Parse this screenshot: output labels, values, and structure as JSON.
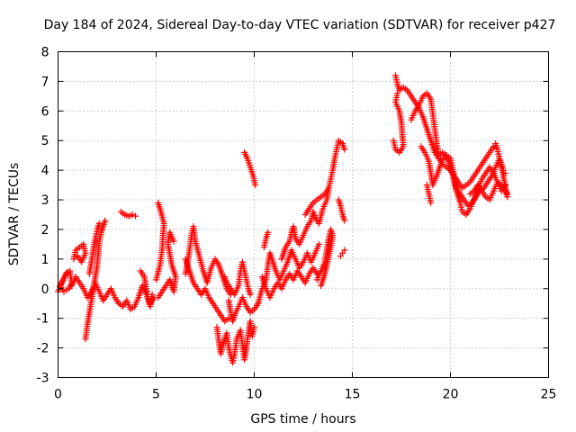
{
  "chart_data": {
    "type": "scatter",
    "title": "Day 184 of 2024, Sidereal Day-to-day VTEC variation (SDTVAR) for receiver p427",
    "xlabel": "GPS time / hours",
    "ylabel": "SDTVAR / TECUs",
    "xlim": [
      0,
      25
    ],
    "ylim": [
      -3,
      8
    ],
    "xticks": [
      0,
      5,
      10,
      15,
      20,
      25
    ],
    "yticks": [
      -3,
      -2,
      -1,
      0,
      1,
      2,
      3,
      4,
      5,
      6,
      7,
      8
    ],
    "grid": true,
    "marker": "plus",
    "color": "#ff0000",
    "segments": [
      [
        [
          0.0,
          -0.1
        ],
        [
          0.2,
          0.2
        ],
        [
          0.4,
          0.5
        ],
        [
          0.6,
          0.6
        ],
        [
          0.7,
          0.2
        ],
        [
          0.55,
          0.0
        ],
        [
          0.3,
          -0.1
        ],
        [
          0.1,
          0.1
        ],
        [
          0.45,
          0.55
        ]
      ],
      [
        [
          0.7,
          0.1
        ],
        [
          0.9,
          0.4
        ],
        [
          1.1,
          0.2
        ],
        [
          1.3,
          0.0
        ],
        [
          1.5,
          -0.3
        ],
        [
          1.7,
          -0.1
        ],
        [
          1.9,
          0.2
        ],
        [
          2.1,
          -0.1
        ],
        [
          2.3,
          -0.4
        ],
        [
          2.5,
          -0.2
        ],
        [
          2.7,
          0.0
        ],
        [
          2.9,
          -0.3
        ],
        [
          3.1,
          -0.5
        ],
        [
          3.3,
          -0.6
        ],
        [
          3.5,
          -0.4
        ],
        [
          3.7,
          -0.7
        ],
        [
          3.9,
          -0.6
        ],
        [
          4.1,
          -0.3
        ],
        [
          4.3,
          0.1
        ],
        [
          4.5,
          -0.2
        ],
        [
          4.7,
          -0.5
        ],
        [
          4.9,
          -0.3
        ]
      ],
      [
        [
          0.8,
          1.0
        ],
        [
          0.9,
          1.3
        ],
        [
          1.1,
          1.4
        ],
        [
          1.3,
          1.5
        ],
        [
          1.4,
          1.2
        ],
        [
          1.2,
          0.9
        ],
        [
          1.0,
          1.1
        ]
      ],
      [
        [
          1.4,
          -1.7
        ],
        [
          1.5,
          -1.2
        ],
        [
          1.6,
          -0.8
        ],
        [
          1.7,
          -0.4
        ],
        [
          1.8,
          0.0
        ],
        [
          1.9,
          0.4
        ],
        [
          2.0,
          0.8
        ],
        [
          2.05,
          1.2
        ],
        [
          2.1,
          1.6
        ],
        [
          2.2,
          1.9
        ],
        [
          2.3,
          2.1
        ],
        [
          2.4,
          2.3
        ]
      ],
      [
        [
          1.6,
          0.5
        ],
        [
          1.7,
          0.9
        ],
        [
          1.8,
          1.3
        ],
        [
          1.9,
          1.7
        ],
        [
          2.0,
          2.0
        ],
        [
          2.1,
          2.2
        ]
      ],
      [
        [
          3.2,
          2.6
        ],
        [
          3.4,
          2.5
        ],
        [
          3.6,
          2.45
        ],
        [
          3.8,
          2.5
        ],
        [
          3.95,
          2.45
        ]
      ],
      [
        [
          4.2,
          0.6
        ],
        [
          4.4,
          0.4
        ],
        [
          4.5,
          0.0
        ],
        [
          4.6,
          -0.4
        ],
        [
          4.7,
          -0.6
        ],
        [
          4.8,
          -0.2
        ]
      ],
      [
        [
          5.0,
          0.3
        ],
        [
          5.2,
          0.8
        ],
        [
          5.3,
          1.3
        ],
        [
          5.35,
          1.8
        ],
        [
          5.4,
          2.2
        ],
        [
          5.2,
          2.7
        ],
        [
          5.1,
          2.9
        ]
      ],
      [
        [
          5.1,
          -0.3
        ],
        [
          5.3,
          -0.1
        ],
        [
          5.5,
          0.1
        ],
        [
          5.7,
          0.3
        ],
        [
          5.9,
          -0.1
        ],
        [
          6.0,
          0.4
        ],
        [
          5.8,
          0.8
        ],
        [
          5.6,
          1.5
        ],
        [
          5.7,
          1.9
        ],
        [
          5.9,
          1.6
        ]
      ],
      [
        [
          6.5,
          0.5
        ],
        [
          6.6,
          0.9
        ],
        [
          6.7,
          1.3
        ],
        [
          6.8,
          1.8
        ],
        [
          6.9,
          2.1
        ],
        [
          7.0,
          1.6
        ],
        [
          7.2,
          1.1
        ],
        [
          7.4,
          0.6
        ],
        [
          7.6,
          0.2
        ],
        [
          7.8,
          0.7
        ],
        [
          8.0,
          1.0
        ],
        [
          8.2,
          0.8
        ],
        [
          8.4,
          0.4
        ],
        [
          8.6,
          0.0
        ],
        [
          8.8,
          -0.2
        ]
      ],
      [
        [
          6.5,
          1.0
        ],
        [
          6.7,
          0.6
        ],
        [
          6.9,
          0.2
        ],
        [
          7.1,
          0.0
        ],
        [
          7.3,
          -0.2
        ],
        [
          7.5,
          0.0
        ],
        [
          7.7,
          -0.3
        ],
        [
          7.9,
          -0.5
        ],
        [
          8.1,
          -0.7
        ],
        [
          8.3,
          -0.9
        ],
        [
          8.5,
          -1.1
        ],
        [
          8.7,
          -1.0
        ]
      ],
      [
        [
          8.1,
          -1.3
        ],
        [
          8.2,
          -1.8
        ],
        [
          8.3,
          -2.2
        ],
        [
          8.4,
          -1.9
        ],
        [
          8.6,
          -1.5
        ],
        [
          8.7,
          -2.0
        ],
        [
          8.9,
          -2.5
        ],
        [
          9.0,
          -2.2
        ],
        [
          9.1,
          -1.7
        ],
        [
          9.3,
          -1.4
        ],
        [
          9.4,
          -1.9
        ],
        [
          9.5,
          -2.4
        ],
        [
          9.6,
          -2.0
        ],
        [
          9.7,
          -1.5
        ],
        [
          9.8,
          -1.1
        ],
        [
          9.9,
          -1.6
        ],
        [
          10.0,
          -1.3
        ]
      ],
      [
        [
          8.7,
          -0.4
        ],
        [
          8.8,
          -0.8
        ],
        [
          8.9,
          -1.1
        ],
        [
          9.0,
          -0.9
        ],
        [
          9.2,
          -0.6
        ],
        [
          9.4,
          -0.3
        ],
        [
          9.6,
          -0.6
        ],
        [
          9.8,
          -0.8
        ],
        [
          10.0,
          -0.7
        ],
        [
          10.2,
          -0.5
        ]
      ],
      [
        [
          8.5,
          0.4
        ],
        [
          8.6,
          0.2
        ],
        [
          8.8,
          0.0
        ],
        [
          9.0,
          -0.2
        ],
        [
          9.2,
          0.1
        ],
        [
          9.3,
          0.6
        ],
        [
          9.4,
          0.9
        ],
        [
          9.5,
          0.6
        ],
        [
          9.6,
          0.3
        ],
        [
          9.7,
          0.0
        ],
        [
          9.8,
          -0.2
        ]
      ],
      [
        [
          9.5,
          4.6
        ],
        [
          9.65,
          4.4
        ],
        [
          9.8,
          4.1
        ],
        [
          9.95,
          3.8
        ],
        [
          10.05,
          3.5
        ]
      ],
      [
        [
          10.2,
          -0.5
        ],
        [
          10.4,
          0.0
        ],
        [
          10.6,
          0.3
        ],
        [
          10.7,
          0.8
        ],
        [
          10.8,
          1.2
        ],
        [
          10.9,
          1.0
        ],
        [
          11.1,
          0.6
        ],
        [
          11.3,
          0.3
        ],
        [
          11.5,
          0.6
        ],
        [
          11.7,
          0.9
        ],
        [
          11.9,
          1.3
        ],
        [
          12.1,
          1.0
        ],
        [
          12.3,
          0.7
        ],
        [
          12.5,
          0.9
        ],
        [
          12.7,
          1.2
        ],
        [
          12.9,
          0.9
        ],
        [
          13.1,
          1.2
        ],
        [
          13.3,
          1.5
        ]
      ],
      [
        [
          10.4,
          0.4
        ],
        [
          10.6,
          0.0
        ],
        [
          10.8,
          -0.3
        ],
        [
          11.0,
          0.0
        ],
        [
          11.2,
          0.2
        ],
        [
          11.4,
          0.0
        ],
        [
          11.6,
          0.3
        ],
        [
          11.8,
          0.5
        ],
        [
          12.0,
          0.3
        ],
        [
          12.2,
          0.6
        ],
        [
          12.4,
          0.4
        ],
        [
          12.6,
          0.2
        ],
        [
          12.8,
          0.5
        ],
        [
          13.0,
          0.7
        ],
        [
          13.2,
          0.5
        ]
      ],
      [
        [
          10.5,
          1.4
        ],
        [
          10.6,
          1.7
        ],
        [
          10.7,
          1.9
        ]
      ],
      [
        [
          11.4,
          1.0
        ],
        [
          11.6,
          1.4
        ],
        [
          11.8,
          1.6
        ],
        [
          11.9,
          1.9
        ],
        [
          12.0,
          2.1
        ],
        [
          12.1,
          1.7
        ],
        [
          12.3,
          1.5
        ],
        [
          12.5,
          1.8
        ],
        [
          12.7,
          2.1
        ],
        [
          12.9,
          2.3
        ],
        [
          13.0,
          2.6
        ],
        [
          13.1,
          2.4
        ],
        [
          13.3,
          2.2
        ],
        [
          13.5,
          2.7
        ],
        [
          13.7,
          3.0
        ],
        [
          13.8,
          3.4
        ],
        [
          13.9,
          3.7
        ],
        [
          14.0,
          4.0
        ],
        [
          14.1,
          4.4
        ],
        [
          14.2,
          4.7
        ],
        [
          14.3,
          5.0
        ],
        [
          14.5,
          4.9
        ],
        [
          14.6,
          4.7
        ]
      ],
      [
        [
          12.6,
          2.5
        ],
        [
          12.8,
          2.7
        ],
        [
          13.0,
          2.9
        ],
        [
          13.2,
          3.0
        ],
        [
          13.4,
          3.1
        ],
        [
          13.6,
          3.2
        ],
        [
          13.8,
          3.4
        ]
      ],
      [
        [
          13.2,
          0.3
        ],
        [
          13.4,
          0.6
        ],
        [
          13.6,
          0.9
        ],
        [
          13.7,
          1.3
        ],
        [
          13.8,
          1.7
        ],
        [
          13.9,
          2.0
        ],
        [
          14.0,
          1.8
        ],
        [
          13.9,
          1.4
        ],
        [
          13.6,
          0.5
        ],
        [
          13.4,
          0.1
        ]
      ],
      [
        [
          14.3,
          3.0
        ],
        [
          14.4,
          2.8
        ],
        [
          14.5,
          2.5
        ],
        [
          14.6,
          2.3
        ]
      ],
      [
        [
          14.4,
          1.1
        ],
        [
          14.5,
          1.2
        ],
        [
          14.6,
          1.3
        ]
      ],
      [
        [
          17.2,
          7.2
        ],
        [
          17.3,
          6.9
        ],
        [
          17.4,
          6.7
        ],
        [
          17.6,
          6.8
        ],
        [
          17.8,
          6.7
        ],
        [
          18.0,
          6.5
        ],
        [
          18.2,
          6.3
        ],
        [
          18.4,
          6.1
        ],
        [
          18.6,
          5.8
        ],
        [
          18.8,
          5.4
        ],
        [
          19.0,
          5.0
        ],
        [
          19.2,
          4.6
        ],
        [
          19.4,
          4.4
        ],
        [
          19.6,
          4.2
        ],
        [
          19.8,
          4.1
        ],
        [
          20.0,
          4.0
        ],
        [
          20.2,
          3.8
        ],
        [
          20.4,
          3.6
        ],
        [
          20.6,
          3.4
        ],
        [
          20.8,
          3.5
        ],
        [
          21.0,
          3.6
        ],
        [
          21.2,
          3.8
        ],
        [
          21.4,
          4.0
        ],
        [
          21.6,
          4.2
        ],
        [
          21.8,
          4.4
        ],
        [
          22.0,
          4.6
        ],
        [
          22.2,
          4.8
        ],
        [
          22.3,
          4.9
        ],
        [
          22.4,
          4.7
        ],
        [
          22.5,
          4.4
        ],
        [
          22.6,
          4.2
        ],
        [
          22.7,
          4.0
        ],
        [
          22.8,
          3.9
        ]
      ],
      [
        [
          17.1,
          5.0
        ],
        [
          17.2,
          4.7
        ],
        [
          17.4,
          4.6
        ],
        [
          17.6,
          4.8
        ],
        [
          17.5,
          5.6
        ],
        [
          17.4,
          6.0
        ],
        [
          17.2,
          6.3
        ],
        [
          17.3,
          6.6
        ]
      ],
      [
        [
          18.0,
          5.7
        ],
        [
          18.2,
          6.0
        ],
        [
          18.4,
          6.2
        ],
        [
          18.6,
          6.5
        ],
        [
          18.8,
          6.6
        ],
        [
          19.0,
          6.4
        ],
        [
          19.1,
          5.9
        ],
        [
          19.2,
          5.4
        ],
        [
          19.3,
          4.9
        ],
        [
          19.4,
          4.5
        ],
        [
          19.6,
          4.6
        ],
        [
          19.8,
          4.5
        ],
        [
          20.0,
          4.4
        ],
        [
          20.1,
          4.1
        ],
        [
          20.2,
          3.8
        ],
        [
          20.3,
          3.4
        ],
        [
          20.5,
          3.2
        ],
        [
          20.7,
          3.0
        ],
        [
          20.9,
          2.8
        ],
        [
          21.1,
          2.9
        ],
        [
          21.3,
          3.1
        ],
        [
          21.5,
          3.3
        ],
        [
          21.7,
          3.4
        ],
        [
          21.9,
          3.6
        ],
        [
          22.1,
          3.8
        ],
        [
          22.3,
          4.1
        ],
        [
          22.5,
          4.4
        ],
        [
          22.7,
          3.8
        ],
        [
          22.8,
          3.4
        ],
        [
          22.9,
          3.2
        ]
      ],
      [
        [
          18.5,
          4.8
        ],
        [
          18.7,
          4.6
        ],
        [
          18.9,
          4.3
        ],
        [
          19.0,
          3.9
        ],
        [
          19.1,
          3.5
        ],
        [
          19.3,
          3.8
        ],
        [
          19.5,
          4.2
        ],
        [
          19.7,
          4.5
        ],
        [
          19.9,
          4.3
        ],
        [
          20.1,
          3.9
        ],
        [
          20.3,
          3.3
        ],
        [
          20.5,
          2.9
        ],
        [
          20.6,
          2.6
        ],
        [
          20.8,
          2.5
        ],
        [
          21.0,
          2.7
        ],
        [
          21.2,
          3.0
        ],
        [
          21.4,
          3.4
        ],
        [
          21.6,
          3.7
        ],
        [
          21.8,
          3.9
        ],
        [
          22.0,
          4.1
        ],
        [
          22.2,
          3.9
        ],
        [
          22.4,
          3.6
        ],
        [
          22.6,
          3.3
        ],
        [
          22.8,
          3.5
        ]
      ],
      [
        [
          18.8,
          3.5
        ],
        [
          18.9,
          3.2
        ],
        [
          19.0,
          2.9
        ]
      ],
      [
        [
          21.0,
          3.2
        ],
        [
          21.2,
          3.3
        ],
        [
          21.4,
          3.5
        ],
        [
          21.6,
          3.3
        ],
        [
          21.8,
          3.1
        ],
        [
          22.0,
          3.0
        ],
        [
          22.2,
          3.3
        ],
        [
          22.4,
          3.6
        ],
        [
          22.6,
          3.5
        ],
        [
          22.8,
          3.3
        ],
        [
          22.9,
          3.1
        ]
      ]
    ]
  }
}
